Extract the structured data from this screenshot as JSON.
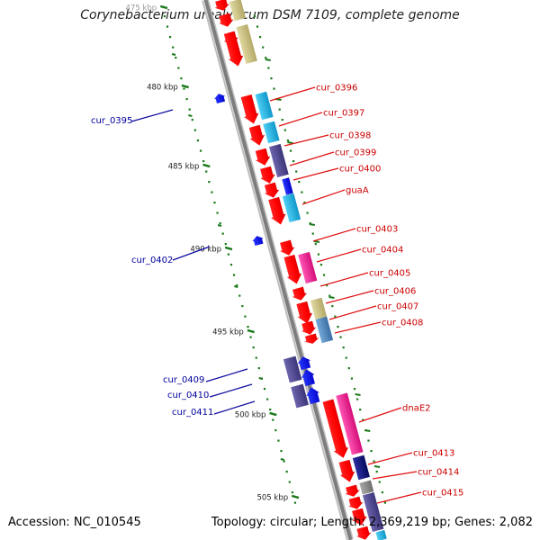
{
  "title": "Corynebacterium urealyticum DSM 7109, complete genome",
  "footer": {
    "accession": "Accession: NC_010545",
    "topology": "Topology: circular; Length: 2,369,219 bp; Genes: 2,082"
  },
  "colors": {
    "backbone": "#8c8c8c",
    "tick": "#1a7a1a",
    "forward_cds": "#ff1010",
    "reverse_cds": "#0a14e6",
    "right_label": "#cc0000",
    "left_label": "#00009c",
    "khaki": "#c9bf80",
    "cyan": "#1ab4e6",
    "slate": "#4d4690",
    "pink": "#ee1a8c",
    "navy": "#0c0f78",
    "steel": "#4d86bd",
    "gray": "#8a8a8a"
  },
  "ruler": {
    "labels": [
      "475 kbp",
      "480 kbp",
      "485 kbp",
      "490 kbp",
      "495 kbp",
      "500 kbp",
      "505 kbp"
    ]
  },
  "genes_right": [
    "cur_0396",
    "cur_0397",
    "cur_0398",
    "cur_0399",
    "cur_0400",
    "guaA",
    "cur_0403",
    "cur_0404",
    "cur_0405",
    "cur_0406",
    "cur_0407",
    "cur_0408",
    "dnaE2",
    "cur_0413",
    "cur_0414",
    "cur_0415"
  ],
  "genes_left": [
    "cur_0395",
    "cur_0402",
    "cur_0409",
    "cur_0410",
    "cur_0411"
  ]
}
